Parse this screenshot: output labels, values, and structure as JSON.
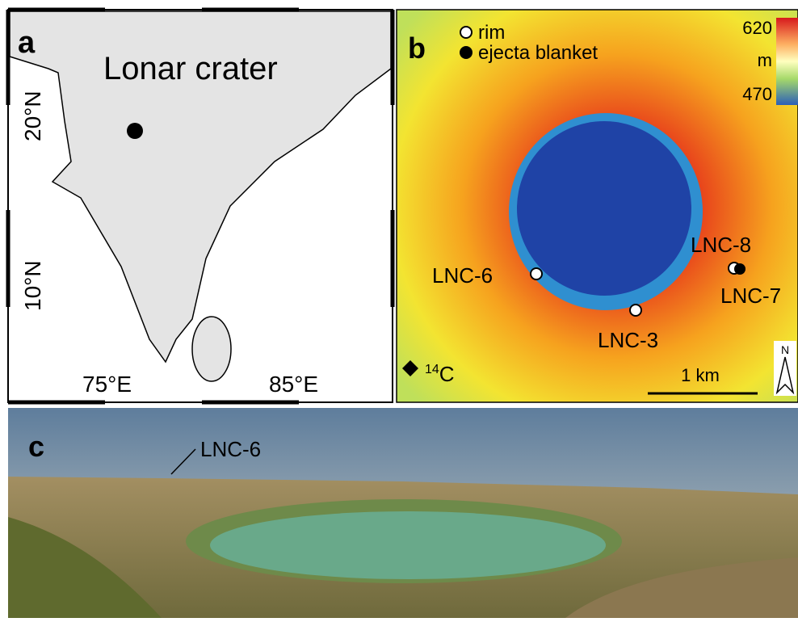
{
  "panels": {
    "a": {
      "letter": "a",
      "title": "Lonar crater",
      "lat_labels": [
        "20°N",
        "10°N"
      ],
      "lon_labels": [
        "75°E",
        "85°E"
      ]
    },
    "b": {
      "letter": "b",
      "legend": [
        "rim",
        "ejecta blanket"
      ],
      "colorbar": {
        "max": 620,
        "unit": "m",
        "min": 470
      },
      "samples": [
        "LNC-8",
        "LNC-6",
        "LNC-7",
        "LNC-3"
      ],
      "dating": {
        "sup": "14",
        "text": "C"
      },
      "scale": "1 km",
      "north": "N"
    },
    "c": {
      "letter": "c",
      "annotation": "LNC-6"
    }
  }
}
